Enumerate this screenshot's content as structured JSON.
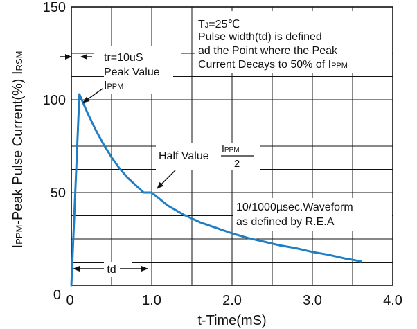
{
  "chart_data": {
    "type": "line",
    "xlabel": "t-Time(mS)",
    "ylabel": {
      "prefix": "I",
      "prefix_sub": "PPM",
      "main": "-Peak Pulse Current(%) I",
      "suffix_sub": "RSM"
    },
    "xlim": [
      0,
      4.0
    ],
    "ylim": [
      0,
      150
    ],
    "x_ticks": [
      {
        "value": 0,
        "label": "0"
      },
      {
        "value": 1.0,
        "label": "1.0"
      },
      {
        "value": 2.0,
        "label": "2.0"
      },
      {
        "value": 3.0,
        "label": "3.0"
      },
      {
        "value": 4.0,
        "label": "4.0"
      }
    ],
    "y_ticks": [
      {
        "value": 0,
        "label": "0"
      },
      {
        "value": 50,
        "label": "50"
      },
      {
        "value": 100,
        "label": "100"
      },
      {
        "value": 150,
        "label": "150"
      }
    ],
    "grid": true,
    "grid_x_step": 0.5,
    "grid_y_step": 12.5,
    "series": [
      {
        "color": "#1f7fc4",
        "x": [
          0,
          0.1,
          0.2,
          0.3,
          0.4,
          0.5,
          0.6,
          0.7,
          0.8,
          0.9,
          1.0,
          1.2,
          1.4,
          1.6,
          1.8,
          2.0,
          2.2,
          2.4,
          2.6,
          2.8,
          3.0,
          3.2,
          3.4,
          3.6
        ],
        "y": [
          0,
          103,
          93,
          84,
          76,
          69,
          63,
          58,
          54,
          50,
          50,
          43,
          38,
          34,
          31,
          28,
          25.5,
          23.5,
          21.5,
          20,
          18,
          16.5,
          14.5,
          13
        ]
      }
    ],
    "annotations": {
      "conditions": {
        "tj_prefix": "T",
        "tj_sub": "J",
        "tj_value": "=25℃",
        "line2": "Pulse width(td) is defined",
        "line3": "ad the Point where the Peak",
        "line4_main": "Current Decays to 50% of I",
        "line4_sub": "PPM"
      },
      "tr": "tr=10uS",
      "peak": {
        "line1": "Peak Value",
        "line2_main": "I",
        "line2_sub": "PPM"
      },
      "half": {
        "label": "Half Value",
        "num_main": "I",
        "num_sub": "PPM",
        "den": "2"
      },
      "waveform": {
        "line1": "10/1000µsec.Waveform",
        "line2": "as defined by R.E.A"
      },
      "td": "td"
    }
  }
}
